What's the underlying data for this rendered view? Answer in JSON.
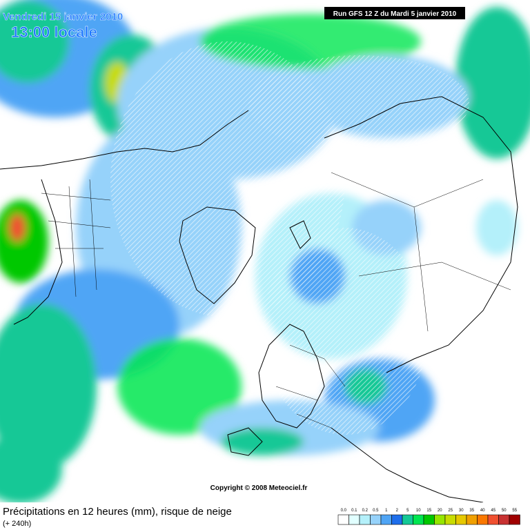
{
  "header": {
    "date": "Vendredi 15 janvier 2010",
    "time": "13:00 locale",
    "run": "Run GFS 12 Z du Mardi 5 janvier 2010"
  },
  "copyright": "Copyright © 2008 Meteociel.fr",
  "footer": {
    "title": "Précipitations en 12 heures (mm), risque de neige",
    "lead": "(+ 240h)"
  },
  "legend": [
    {
      "label": "0.0",
      "color": "#ffffff"
    },
    {
      "label": "0.1",
      "color": "#e1ffff"
    },
    {
      "label": "0.2",
      "color": "#b4f0fa"
    },
    {
      "label": "0.5",
      "color": "#96d2fa"
    },
    {
      "label": "1",
      "color": "#50a5f5"
    },
    {
      "label": "2",
      "color": "#1e6eeb"
    },
    {
      "label": "5",
      "color": "#14c896"
    },
    {
      "label": "10",
      "color": "#00e650"
    },
    {
      "label": "15",
      "color": "#00c800"
    },
    {
      "label": "20",
      "color": "#96e600"
    },
    {
      "label": "25",
      "color": "#c8dc00"
    },
    {
      "label": "30",
      "color": "#e6c800"
    },
    {
      "label": "35",
      "color": "#f0a000"
    },
    {
      "label": "40",
      "color": "#fa7800"
    },
    {
      "label": "45",
      "color": "#f05030"
    },
    {
      "label": "50",
      "color": "#c83232"
    },
    {
      "label": "55",
      "color": "#a00000"
    }
  ]
}
